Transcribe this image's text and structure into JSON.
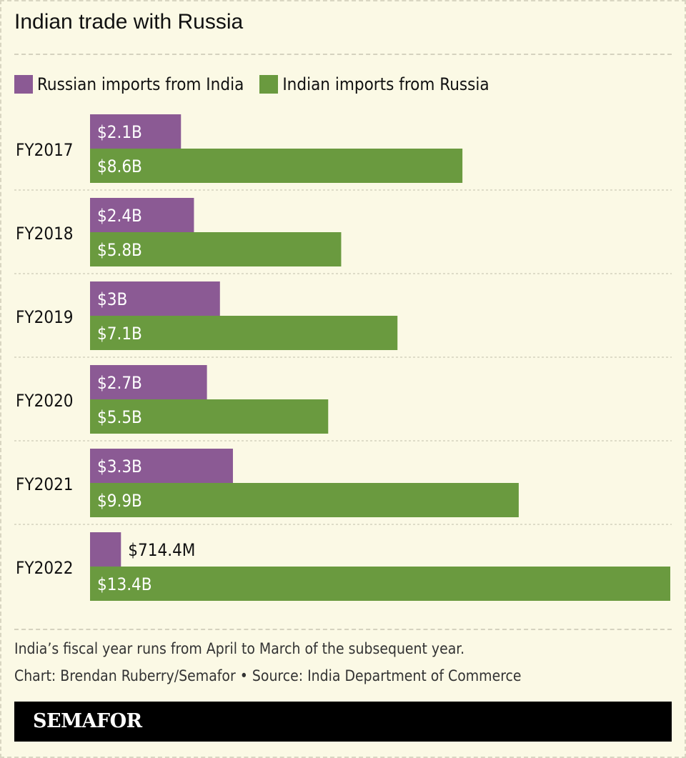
{
  "colors": {
    "background": "#fbf9e5",
    "russian_imports": "#8b5a94",
    "indian_imports": "#6a9a3f",
    "inside_label": "#ffffff",
    "outside_label": "#111111"
  },
  "chart_data": {
    "type": "bar",
    "orientation": "horizontal",
    "title": "Indian trade with Russia",
    "categories": [
      "FY2017",
      "FY2018",
      "FY2019",
      "FY2020",
      "FY2021",
      "FY2022"
    ],
    "series": [
      {
        "name": "Russian imports from India",
        "values": [
          2.1,
          2.4,
          3.0,
          2.7,
          3.3,
          0.7144
        ],
        "labels": [
          "$2.1B",
          "$2.4B",
          "$3B",
          "$2.7B",
          "$3.3B",
          "$714.4M"
        ]
      },
      {
        "name": "Indian imports from Russia",
        "values": [
          8.6,
          5.8,
          7.1,
          5.5,
          9.9,
          13.4
        ],
        "labels": [
          "$8.6B",
          "$5.8B",
          "$7.1B",
          "$5.5B",
          "$9.9B",
          "$13.4B"
        ]
      }
    ],
    "unit": "USD billions",
    "xlim": [
      0,
      13.4
    ],
    "legend_position": "top-left",
    "grid": false
  },
  "footnote": "India’s fiscal year runs from April to March of the subsequent year.",
  "credit": "Chart: Brendan Ruberry/Semafor • Source: India Department of Commerce",
  "brand": "SEMAFOR"
}
